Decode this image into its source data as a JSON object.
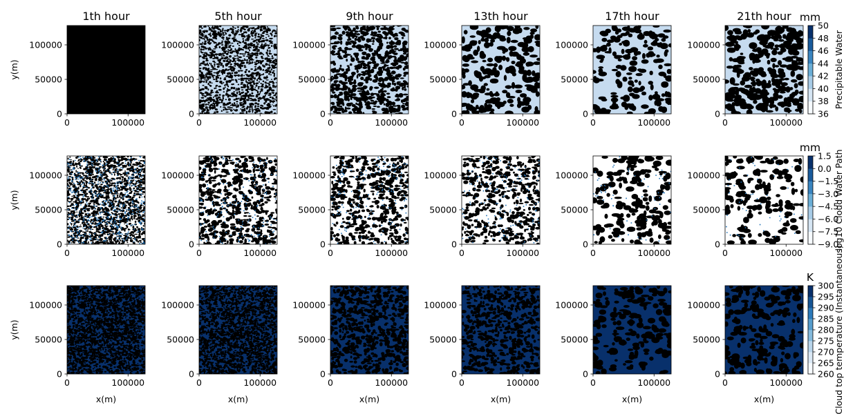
{
  "figure": {
    "column_titles": [
      "1th hour",
      "5th hour",
      "9th hour",
      "13th hour",
      "17th hour",
      "21th hour"
    ],
    "xlabel": "x(m)",
    "ylabel": "y(m)"
  },
  "chart_data": [
    {
      "type": "heatmap",
      "variable": "Precipitable Water",
      "unit": "mm",
      "colorbar_label": "Precipitable Water",
      "cmap": "Blues",
      "clim": [
        36,
        50
      ],
      "colorbar_ticks": [
        "36",
        "38",
        "40",
        "42",
        "44",
        "46",
        "48",
        "50"
      ],
      "xlim": [
        0,
        128000
      ],
      "ylim": [
        0,
        128000
      ],
      "xticks": [
        "0",
        "100000"
      ],
      "yticks": [
        "0",
        "50000",
        "100000"
      ],
      "panels": [
        {
          "hour": "1th hour",
          "pattern_density": 0.99,
          "grain": "fine"
        },
        {
          "hour": "5th hour",
          "pattern_density": 0.4,
          "grain": "fine"
        },
        {
          "hour": "9th hour",
          "pattern_density": 0.55,
          "grain": "medium"
        },
        {
          "hour": "13th hour",
          "pattern_density": 0.45,
          "grain": "coarse"
        },
        {
          "hour": "17th hour",
          "pattern_density": 0.35,
          "grain": "coarse"
        },
        {
          "hour": "21th hour",
          "pattern_density": 0.6,
          "grain": "coarse"
        }
      ]
    },
    {
      "type": "heatmap",
      "variable": "log10 Cloud Water Path",
      "unit": "mm",
      "colorbar_label": "log10 Cloud Water Path",
      "cmap": "Blues",
      "clim": [
        -9.0,
        1.5
      ],
      "colorbar_ticks": [
        "−9.0",
        "−7.5",
        "−6.0",
        "−4.5",
        "−3.0",
        "−1.5",
        "0.0",
        "1.5"
      ],
      "xlim": [
        0,
        128000
      ],
      "ylim": [
        0,
        128000
      ],
      "xticks": [
        "0",
        "100000"
      ],
      "yticks": [
        "0",
        "50000",
        "100000"
      ],
      "panels": [
        {
          "hour": "1th hour",
          "pattern_density": 0.5,
          "grain": "fine"
        },
        {
          "hour": "5th hour",
          "pattern_density": 0.45,
          "grain": "medium"
        },
        {
          "hour": "9th hour",
          "pattern_density": 0.4,
          "grain": "medium"
        },
        {
          "hour": "13th hour",
          "pattern_density": 0.35,
          "grain": "medium"
        },
        {
          "hour": "17th hour",
          "pattern_density": 0.35,
          "grain": "coarse"
        },
        {
          "hour": "21th hour",
          "pattern_density": 0.3,
          "grain": "coarse"
        }
      ]
    },
    {
      "type": "heatmap",
      "variable": "Cloud top temperature (Instantaneous)",
      "unit": "K",
      "colorbar_label": "Cloud top temperature (Instantaneous)",
      "cmap": "Blues",
      "clim": [
        260,
        300
      ],
      "colorbar_ticks": [
        "260",
        "265",
        "270",
        "275",
        "280",
        "285",
        "290",
        "295",
        "300"
      ],
      "xlim": [
        0,
        128000
      ],
      "ylim": [
        0,
        128000
      ],
      "xticks": [
        "0",
        "100000"
      ],
      "yticks": [
        "0",
        "50000",
        "100000"
      ],
      "panels": [
        {
          "hour": "1th hour",
          "pattern_density": 0.65,
          "grain": "fine"
        },
        {
          "hour": "5th hour",
          "pattern_density": 0.6,
          "grain": "fine"
        },
        {
          "hour": "9th hour",
          "pattern_density": 0.5,
          "grain": "medium"
        },
        {
          "hour": "13th hour",
          "pattern_density": 0.45,
          "grain": "medium"
        },
        {
          "hour": "17th hour",
          "pattern_density": 0.35,
          "grain": "coarse"
        },
        {
          "hour": "21th hour",
          "pattern_density": 0.4,
          "grain": "coarse"
        }
      ]
    }
  ]
}
